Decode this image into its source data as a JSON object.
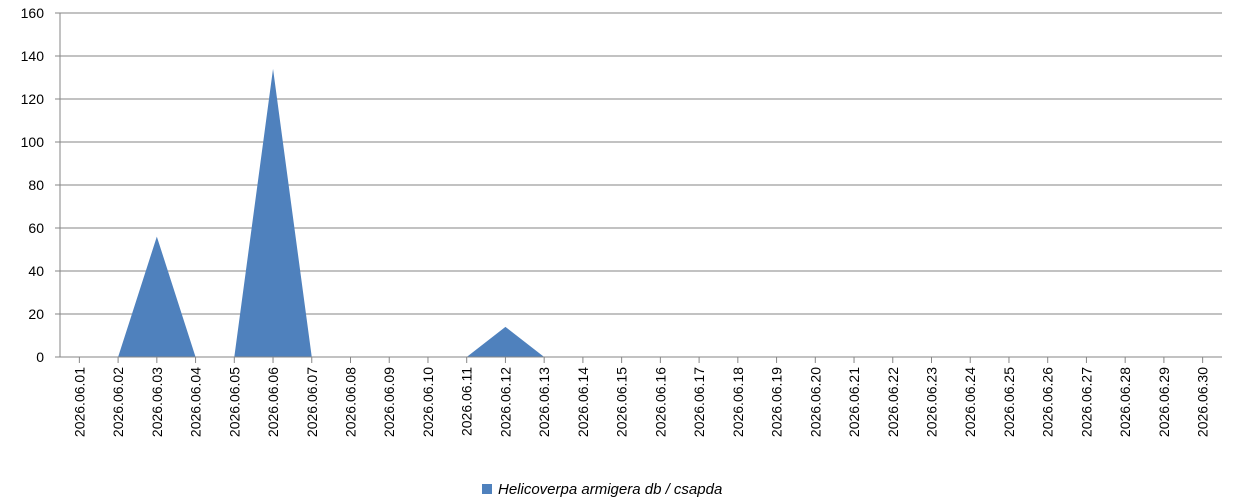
{
  "chart_data": {
    "type": "area",
    "title": "",
    "xlabel": "",
    "ylabel": "",
    "ylim": [
      0,
      160
    ],
    "yticks": [
      0,
      20,
      40,
      60,
      80,
      100,
      120,
      140,
      160
    ],
    "grid": true,
    "legend_position": "bottom",
    "categories": [
      "2026.06.01",
      "2026.06.02",
      "2026.06.03",
      "2026.06.04",
      "2026.06.05",
      "2026.06.06",
      "2026.06.07",
      "2026.06.08",
      "2026.06.09",
      "2026.06.10",
      "2026.06.11",
      "2026.06.12",
      "2026.06.13",
      "2026.06.14",
      "2026.06.15",
      "2026.06.16",
      "2026.06.17",
      "2026.06.18",
      "2026.06.19",
      "2026.06.20",
      "2026.06.21",
      "2026.06.22",
      "2026.06.23",
      "2026.06.24",
      "2026.06.25",
      "2026.06.26",
      "2026.06.27",
      "2026.06.28",
      "2026.06.29",
      "2026.06.30"
    ],
    "series": [
      {
        "name": "Helicoverpa armigera db / csapda",
        "color": "#4f81bd",
        "values": [
          0,
          0,
          56,
          0,
          0,
          134,
          0,
          0,
          0,
          0,
          0,
          14,
          0,
          0,
          0,
          0,
          0,
          0,
          0,
          0,
          0,
          0,
          0,
          0,
          0,
          0,
          0,
          0,
          0,
          0
        ]
      }
    ]
  }
}
